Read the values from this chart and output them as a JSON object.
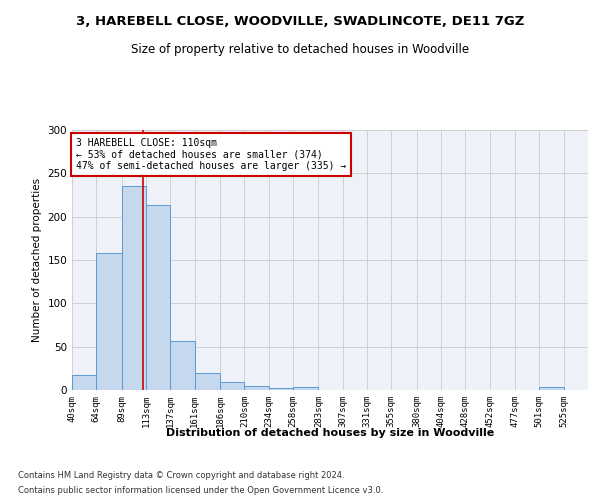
{
  "title": "3, HAREBELL CLOSE, WOODVILLE, SWADLINCOTE, DE11 7GZ",
  "subtitle": "Size of property relative to detached houses in Woodville",
  "xlabel": "Distribution of detached houses by size in Woodville",
  "ylabel": "Number of detached properties",
  "bar_color": "#c5d8ed",
  "bar_edge_color": "#5b9bd5",
  "grid_color": "#d0d0d0",
  "bg_color": "#eef2f8",
  "annotation_line_color": "#cc0000",
  "annotation_line1": "3 HAREBELL CLOSE: 110sqm",
  "annotation_line2": "← 53% of detached houses are smaller (374)",
  "annotation_line3": "47% of semi-detached houses are larger (335) →",
  "property_size": 110,
  "categories": [
    "40sqm",
    "64sqm",
    "89sqm",
    "113sqm",
    "137sqm",
    "161sqm",
    "186sqm",
    "210sqm",
    "234sqm",
    "258sqm",
    "283sqm",
    "307sqm",
    "331sqm",
    "355sqm",
    "380sqm",
    "404sqm",
    "428sqm",
    "452sqm",
    "477sqm",
    "501sqm",
    "525sqm"
  ],
  "bin_edges": [
    40,
    64,
    89,
    113,
    137,
    161,
    186,
    210,
    234,
    258,
    283,
    307,
    331,
    355,
    380,
    404,
    428,
    452,
    477,
    501,
    525,
    549
  ],
  "values": [
    17,
    158,
    235,
    214,
    56,
    20,
    9,
    5,
    2,
    3,
    0,
    0,
    0,
    0,
    0,
    0,
    0,
    0,
    0,
    3,
    0
  ],
  "ylim": [
    0,
    300
  ],
  "xlim": [
    40,
    549
  ],
  "footnote1": "Contains HM Land Registry data © Crown copyright and database right 2024.",
  "footnote2": "Contains public sector information licensed under the Open Government Licence v3.0."
}
